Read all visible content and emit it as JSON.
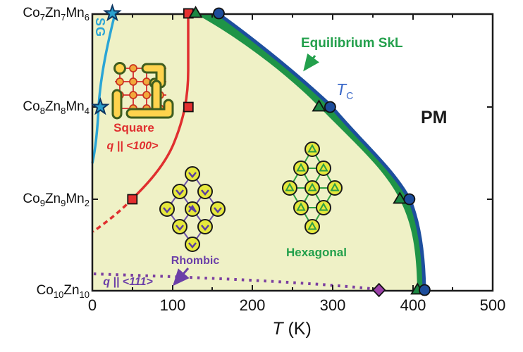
{
  "labels": {
    "y": [
      "Co_7Zn_7Mn_6",
      "Co_8Zn_8Mn_4",
      "Co_9Zn_9Mn_2",
      "Co_10Zn_10"
    ],
    "x_ticks": [
      "0",
      "100",
      "200",
      "300",
      "400",
      "500"
    ],
    "x_title_var": "T",
    "x_title_unit": " (K)",
    "sg": "SG",
    "square": "Square",
    "q100": "q || <100>",
    "rhombic": "Rhombic",
    "q111": "q || <111>",
    "hexagonal": "Hexagonal",
    "skl": "Equilibrium SkL",
    "tc_var": "T",
    "tc_sub": "C",
    "pm": "PM"
  },
  "colors": {
    "ordered_region": "#eff1c6",
    "skl_band_green": "#1f9447",
    "tc_curve_blue": "#1d4f9e",
    "sg_curve_cyan": "#2aa5d6",
    "square_boundary_red": "#e02f2f",
    "q111_boundary_purple": "#6b3fa8",
    "diamond_marker": "#9b3fa8"
  },
  "chart_data": {
    "type": "scatter",
    "xlabel": "T (K)",
    "xlim": [
      0,
      500
    ],
    "y_categories": [
      "Co7Zn7Mn6",
      "Co8Zn8Mn4",
      "Co9Zn9Mn2",
      "Co10Zn10"
    ],
    "regions": [
      "SG",
      "Square (q || <100>)",
      "Rhombic",
      "Hexagonal",
      "Equilibrium SkL",
      "PM"
    ],
    "series": [
      {
        "name": "Spin-glass boundary (stars)",
        "marker": "star",
        "color": "#2aa0cc",
        "points": [
          {
            "composition": "Co7Zn7Mn6",
            "T": 25
          },
          {
            "composition": "Co8Zn8Mn4",
            "T": 10
          }
        ]
      },
      {
        "name": "Square SkL boundary q||<100> (squares)",
        "marker": "square",
        "color": "#e42f2f",
        "points": [
          {
            "composition": "Co7Zn7Mn6",
            "T": 120
          },
          {
            "composition": "Co8Zn8Mn4",
            "T": 120
          },
          {
            "composition": "Co9Zn9Mn2",
            "T": 50
          }
        ]
      },
      {
        "name": "Equilibrium SkL lower boundary (triangles)",
        "marker": "triangle",
        "color": "#1b8742",
        "points": [
          {
            "composition": "Co7Zn7Mn6",
            "T": 129
          },
          {
            "composition": "Co8Zn8Mn4",
            "T": 283
          },
          {
            "composition": "Co9Zn9Mn2",
            "T": 384
          },
          {
            "composition": "Co10Zn10",
            "T": 406
          }
        ]
      },
      {
        "name": "Curie temperature TC (circles)",
        "marker": "circle",
        "color": "#1d4d9b",
        "points": [
          {
            "composition": "Co7Zn7Mn6",
            "T": 158
          },
          {
            "composition": "Co8Zn8Mn4",
            "T": 297
          },
          {
            "composition": "Co9Zn9Mn2",
            "T": 396
          },
          {
            "composition": "Co10Zn10",
            "T": 415
          }
        ]
      },
      {
        "name": "q||<111> rhombic boundary (diamond)",
        "marker": "diamond",
        "color": "#9b3fa8",
        "points": [
          {
            "composition": "Co10Zn10",
            "T": 358
          }
        ]
      }
    ]
  }
}
